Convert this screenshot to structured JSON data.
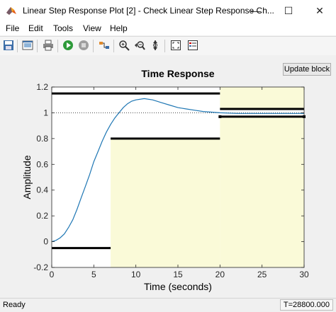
{
  "window": {
    "title": "Linear Step Response Plot [2] - Check Linear Step Response Ch...",
    "minimize_glyph": "—",
    "maximize_glyph": "☐",
    "close_glyph": "✕"
  },
  "menu": {
    "items": [
      "File",
      "Edit",
      "Tools",
      "View",
      "Help"
    ],
    "dock_glyph": "⮝"
  },
  "toolbar": {
    "icons": [
      "save-icon",
      "print-preview-icon",
      "print-icon",
      "run-icon",
      "stop-icon",
      "link-icon",
      "zoom-in-icon",
      "zoom-out-icon",
      "pan-icon",
      "fit-icon",
      "legend-icon"
    ]
  },
  "update_button_label": "Update block",
  "chart_data": {
    "type": "line",
    "title": "Time Response",
    "xlabel": "Time (seconds)",
    "ylabel": "Amplitude",
    "xlim": [
      0,
      30
    ],
    "ylim": [
      -0.2,
      1.2
    ],
    "xticks": [
      "0",
      "5",
      "10",
      "15",
      "20",
      "25",
      "30"
    ],
    "yticks": [
      "-0.2",
      "0",
      "0.2",
      "0.4",
      "0.6",
      "0.8",
      "1",
      "1.2"
    ],
    "reference_line": {
      "y": 1,
      "style": "dotted"
    },
    "shaded_regions": [
      {
        "x": [
          7,
          20
        ],
        "y": [
          -0.2,
          0.8
        ]
      },
      {
        "x": [
          20,
          30
        ],
        "y": [
          -0.2,
          0.97
        ]
      },
      {
        "x": [
          20,
          30
        ],
        "y": [
          1.03,
          1.2
        ]
      }
    ],
    "bounds": [
      {
        "name": "upper",
        "x": [
          0,
          20
        ],
        "y": 1.15
      },
      {
        "name": "upper",
        "x": [
          20,
          30
        ],
        "y": 1.03
      },
      {
        "name": "lower",
        "x": [
          0,
          7
        ],
        "y": -0.05
      },
      {
        "name": "lower",
        "x": [
          7,
          20
        ],
        "y": 0.8
      },
      {
        "name": "lower",
        "x": [
          20,
          30
        ],
        "y": 0.97
      }
    ],
    "series": [
      {
        "x": [
          0,
          0.5,
          1,
          1.5,
          2,
          2.5,
          3,
          3.5,
          4,
          4.5,
          5,
          5.5,
          6,
          6.5,
          7,
          7.5,
          8,
          8.5,
          9,
          9.5,
          10,
          11,
          12,
          13,
          14,
          15,
          16,
          17,
          18,
          19,
          20,
          22,
          24,
          26,
          28,
          30
        ],
        "y": [
          0,
          0.01,
          0.03,
          0.06,
          0.11,
          0.17,
          0.25,
          0.34,
          0.43,
          0.52,
          0.62,
          0.7,
          0.78,
          0.85,
          0.91,
          0.96,
          1.0,
          1.04,
          1.07,
          1.09,
          1.1,
          1.11,
          1.1,
          1.08,
          1.06,
          1.04,
          1.03,
          1.02,
          1.01,
          1.005,
          1.0,
          0.995,
          0.995,
          0.995,
          0.995,
          0.995
        ],
        "color": "#1f77b4"
      }
    ],
    "colors": {
      "shade": "#fafad8",
      "bound": "#000000",
      "axes_bg": "#ffffff",
      "tick": "#262626"
    }
  },
  "status": {
    "text": "Ready",
    "time": "T=28800.000"
  }
}
